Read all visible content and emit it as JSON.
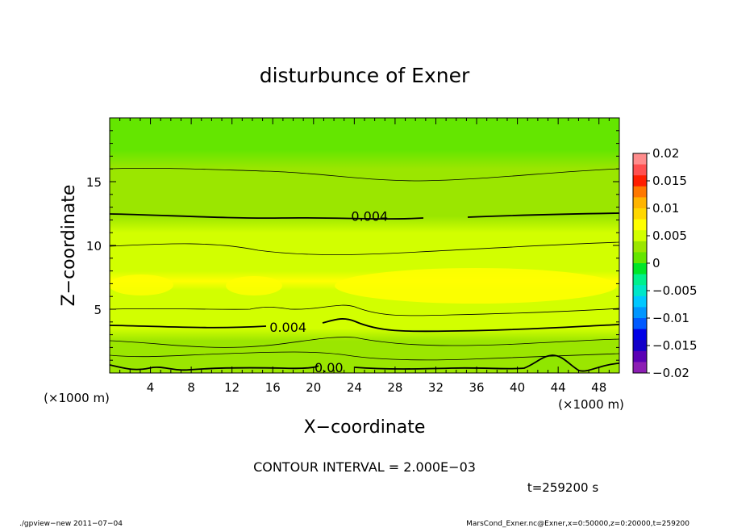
{
  "chart_data": {
    "type": "heatmap",
    "title": "disturbunce of Exner",
    "xlabel": "X−coordinate",
    "ylabel": "Z−coordinate",
    "x_unit_left": "(×1000 m)",
    "x_unit_right": "(×1000 m)",
    "xlim": [
      0,
      50
    ],
    "ylim": [
      0,
      20
    ],
    "x_ticks": [
      4,
      8,
      12,
      16,
      20,
      24,
      28,
      32,
      36,
      40,
      44,
      48
    ],
    "x_tick_labels": [
      "4",
      "8",
      "12",
      "16",
      "20",
      "24",
      "28",
      "32",
      "36",
      "40",
      "44",
      "48"
    ],
    "y_ticks": [
      5,
      10,
      15
    ],
    "y_tick_labels": [
      "5",
      "10",
      "15"
    ],
    "colorbar": {
      "range": [
        -0.02,
        0.02
      ],
      "tick_values": [
        0.02,
        0.015,
        0.01,
        0.005,
        0,
        -0.005,
        -0.01,
        -0.015,
        -0.02
      ],
      "tick_labels": [
        "0.02",
        "0.015",
        "0.01",
        "0.005",
        "0",
        "−0.005",
        "−0.01",
        "−0.015",
        "−0.02"
      ],
      "colors": [
        "#ff8c8c",
        "#ff5050",
        "#ff1e00",
        "#ff7800",
        "#ffb400",
        "#ffd700",
        "#ffff00",
        "#d2ff00",
        "#9be600",
        "#64e600",
        "#00e628",
        "#00f08c",
        "#00e6c8",
        "#00c8ff",
        "#0096ff",
        "#005aff",
        "#0000e6",
        "#1400c8",
        "#5a00b4",
        "#8c1eb4"
      ]
    },
    "field_levels": [
      {
        "z": 0.0,
        "value": 0.0026
      },
      {
        "z": 0.6,
        "value": 0.0022
      },
      {
        "z": 1.5,
        "value": 0.003
      },
      {
        "z": 2.5,
        "value": 0.0036
      },
      {
        "z": 3.5,
        "value": 0.0042
      },
      {
        "z": 4.5,
        "value": 0.0049
      },
      {
        "z": 5.5,
        "value": 0.0055
      },
      {
        "z": 6.5,
        "value": 0.006
      },
      {
        "z": 7.2,
        "value": 0.0062
      },
      {
        "z": 8.0,
        "value": 0.0059
      },
      {
        "z": 9.0,
        "value": 0.0054
      },
      {
        "z": 10.0,
        "value": 0.0049
      },
      {
        "z": 11.0,
        "value": 0.0045
      },
      {
        "z": 12.3,
        "value": 0.004
      },
      {
        "z": 13.5,
        "value": 0.0035
      },
      {
        "z": 15.0,
        "value": 0.0028
      },
      {
        "z": 16.0,
        "value": 0.0022
      },
      {
        "z": 17.5,
        "value": 0.0015
      },
      {
        "z": 20.0,
        "value": 0.0006
      }
    ],
    "contour_labels": [
      {
        "text": "0.004",
        "x": 25.5,
        "z": 12.3
      },
      {
        "text": "0.004",
        "x": 17.5,
        "z": 3.6
      },
      {
        "text": "0.00",
        "x": 21.5,
        "z": 0.45
      }
    ],
    "contour_interval_text": "CONTOUR INTERVAL = 2.000E−03",
    "time_text": "t=259200 s"
  },
  "footer": {
    "left": "./gpview−new  2011−07−04",
    "right": "MarsCond_Exner.nc@Exner,x=0:50000,z=0:20000,t=259200"
  }
}
